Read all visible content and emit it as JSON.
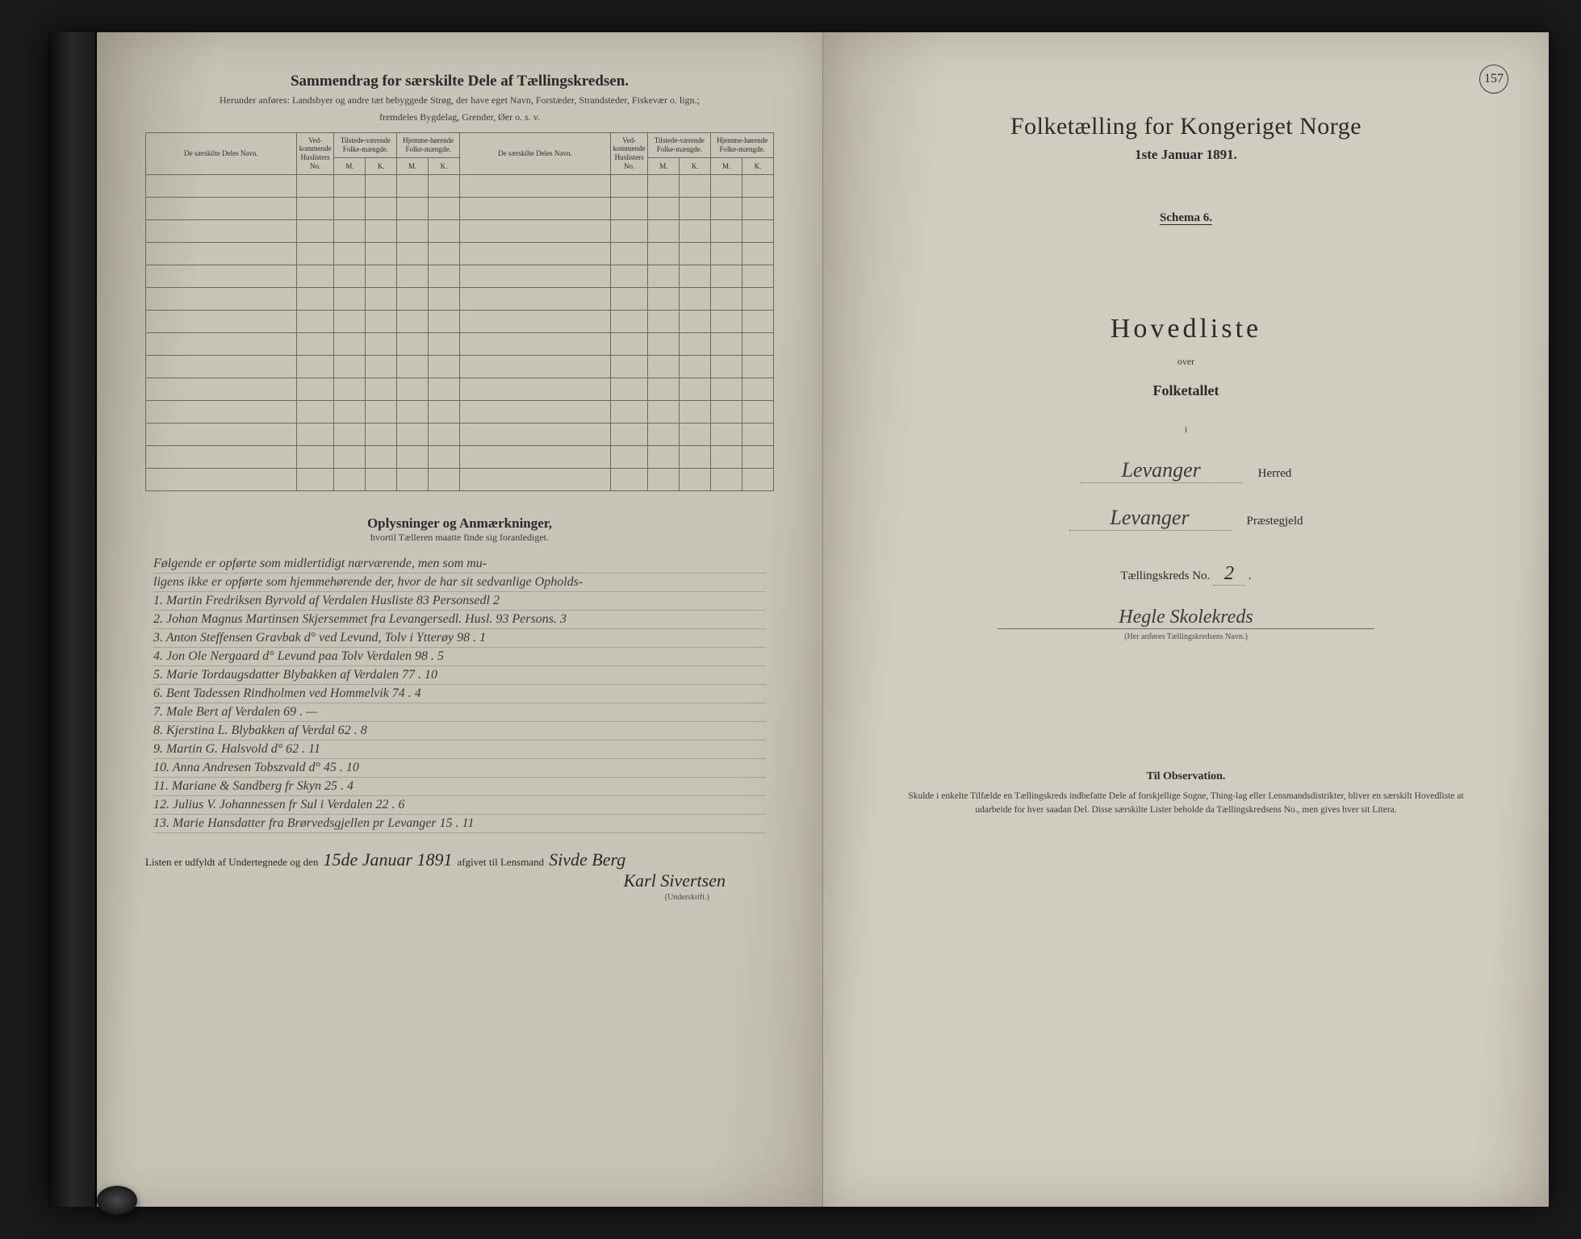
{
  "page_number": "157",
  "left": {
    "heading": "Sammendrag for særskilte Dele af Tællingskredsen.",
    "subheading1": "Herunder anføres: Landsbyer og andre tæt bebyggede Strøg, der have eget Navn, Forstæder, Strandsteder, Fiskevær o. lign.;",
    "subheading2": "fremdeles Bygdelag, Grender, Øer o. s. v.",
    "table": {
      "col_navn": "De særskilte Deles Navn.",
      "col_huslister": "Ved-kommende Huslisters No.",
      "col_tilstede": "Tilstede-værende Folke-mængde.",
      "col_hjemme": "Hjemme-hørende Folke-mængde.",
      "sub_m": "M.",
      "sub_k": "K."
    },
    "oplysninger_heading": "Oplysninger og Anmærkninger,",
    "oplysninger_sub": "hvortil Tælleren maatte finde sig foranlediget.",
    "notes_intro1": "Følgende er opførte som midlertidigt nærværende, men som mu-",
    "notes_intro2": "ligens ikke er opførte som hjemmehørende der, hvor de har sit sedvanlige Opholds-",
    "notes": [
      "1. Martin Fredriksen Byrvold af Verdalen Husliste 83 Personsedl 2",
      "2. Johan Magnus Martinsen Skjersemmet fra Levangersedl. Husl. 93 Persons. 3",
      "3. Anton Steffensen Gravbak d° ved Levund, Tolv i Ytterøy 98 . 1",
      "4. Jon Ole Nergaard d° Levund paa Tolv Verdalen 98 . 5",
      "5. Marie Tordaugsdatter Blybakken af Verdalen 77 . 10",
      "6. Bent Tadessen Rindholmen ved Hommelvik 74 . 4",
      "7. Male Bert af Verdalen 69 . —",
      "8. Kjerstina L. Blybakken af Verdal 62 . 8",
      "9. Martin G. Halsvold d° 62 . 11",
      "10. Anna Andresen Tobszvald d° 45 . 10",
      "11. Mariane & Sandberg fr Skyn 25 . 4",
      "12. Julius V. Johannessen fr Sul i Verdalen 22 . 6",
      "13. Marie Hansdatter fra Brørvedsgjellen pr Levanger 15 . 11"
    ],
    "sig_prefix": "Listen er udfyldt af Undertegnede og den",
    "sig_date": "15de Januar 1891",
    "sig_mid": "afgivet til Lensmand",
    "sig_name1": "Sivde Berg",
    "sig_name2": "Karl Sivertsen",
    "sig_caption": "(Underskrift.)"
  },
  "right": {
    "title": "Folketælling for Kongeriget Norge",
    "date": "1ste Januar 1891.",
    "schema": "Schema 6.",
    "hovedliste": "Hovedliste",
    "over": "over",
    "folketallet": "Folketallet",
    "i": "i",
    "herred_value": "Levanger",
    "herred_label": "Herred",
    "praestegjeld_value": "Levanger",
    "praestegjeld_label": "Præstegjeld",
    "kreds_label": "Tællingskreds No.",
    "kreds_no": "2",
    "kreds_name": "Hegle Skolekreds",
    "kreds_caption": "(Her anføres Tællingskredsens Navn.)",
    "obs_heading": "Til Observation.",
    "obs_text": "Skulde i enkelte Tilfælde en Tællingskreds indbefatte Dele af forskjellige Sogne, Thing-lag eller Lensmandsdistrikter, bliver en særskilt Hovedliste at udarbeide for hver saadan Del. Disse særskilte Lister beholde da Tællingskredsens No., men gives hver sit Litera."
  }
}
